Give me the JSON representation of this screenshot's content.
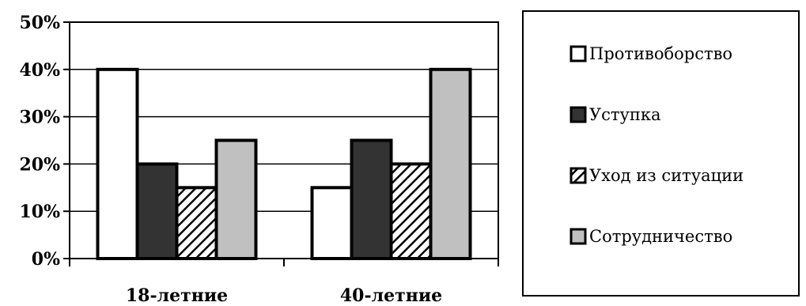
{
  "chart_data": {
    "type": "bar",
    "categories": [
      "18-летние",
      "40-летние"
    ],
    "series": [
      {
        "name": "Противоборство",
        "values": [
          40,
          15
        ],
        "fill": "#ffffff",
        "pattern": "solid"
      },
      {
        "name": "Уступка",
        "values": [
          20,
          25
        ],
        "fill": "#333333",
        "pattern": "solid"
      },
      {
        "name": "Уход из ситуации",
        "values": [
          15,
          20
        ],
        "fill": "#ffffff",
        "pattern": "diagonal-hatch"
      },
      {
        "name": "Сотрудничество",
        "values": [
          25,
          40
        ],
        "fill": "#c0c0c0",
        "pattern": "solid"
      }
    ],
    "yticks": [
      0,
      10,
      20,
      30,
      40,
      50
    ],
    "ytick_labels": [
      "0%",
      "10%",
      "20%",
      "30%",
      "40%",
      "50%"
    ],
    "ylim": [
      0,
      50
    ],
    "title": "",
    "xlabel": "",
    "ylabel": "",
    "grid": true,
    "legend_position": "right"
  }
}
